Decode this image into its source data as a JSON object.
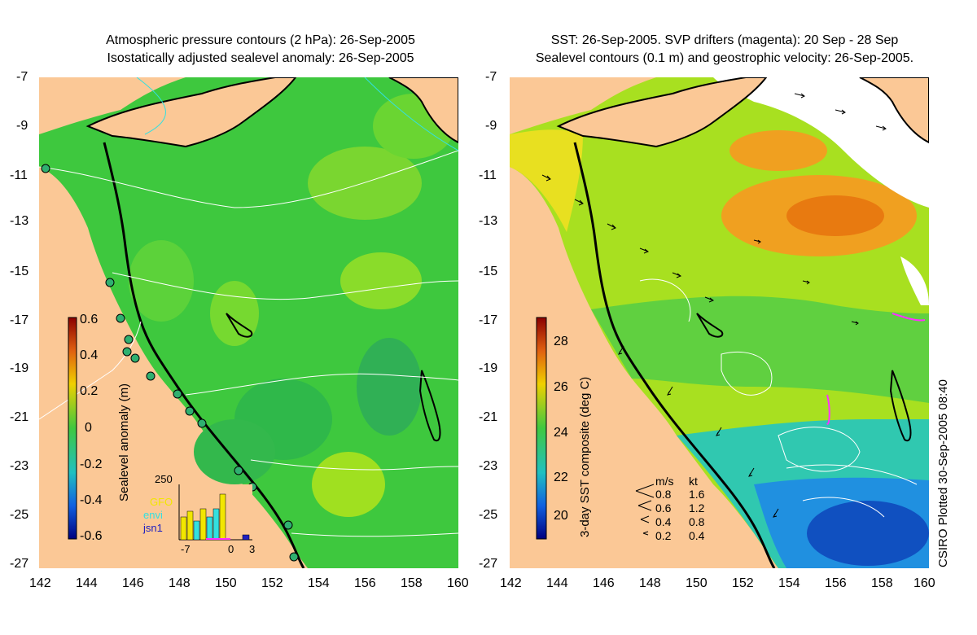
{
  "left_panel": {
    "title_line1": "Atmospheric pressure contours (2 hPa): 26-Sep-2005",
    "title_line2": "Isostatically adjusted sealevel anomaly: 26-Sep-2005",
    "colorbar_label": "Sealevel anomaly (m)",
    "colorbar_ticks": [
      "0.6",
      "0.4",
      "0.2",
      "0",
      "-0.2",
      "-0.4",
      "-0.6"
    ],
    "inset": {
      "ymax_label": "250",
      "legend": [
        {
          "name": "GFO",
          "color": "#f2e600"
        },
        {
          "name": "envi",
          "color": "#33e0e0"
        },
        {
          "name": "jsn1",
          "color": "#2020c0"
        }
      ],
      "x_ticks": [
        "-7",
        "0",
        "3"
      ]
    }
  },
  "right_panel": {
    "title_line1": "SST: 26-Sep-2005. SVP drifters (magenta): 20 Sep - 28 Sep",
    "title_line2": "Sealevel contours (0.1 m) and geostrophic velocity: 26-Sep-2005.",
    "colorbar_label": "3-day SST composite (deg C)",
    "colorbar_ticks": [
      "28",
      "26",
      "24",
      "22",
      "20"
    ],
    "velocity_legend": {
      "header_ms": "m/s",
      "header_kt": "kt",
      "rows": [
        {
          "ms": "0.8",
          "kt": "1.6"
        },
        {
          "ms": "0.6",
          "kt": "1.2"
        },
        {
          "ms": "0.4",
          "kt": "0.8"
        },
        {
          "ms": "0.2",
          "kt": "0.4"
        }
      ]
    },
    "side_note": "CSIRO Plotted 30-Sep-2005 08:40"
  },
  "axes": {
    "lat_ticks": [
      "-7",
      "-9",
      "-11",
      "-13",
      "-15",
      "-17",
      "-19",
      "-21",
      "-23",
      "-25",
      "-27"
    ],
    "lon_ticks": [
      "142",
      "144",
      "146",
      "148",
      "150",
      "152",
      "154",
      "156",
      "158",
      "160"
    ]
  },
  "colors": {
    "land": "#fbc896",
    "ocean_green": "#3ec83e",
    "contour_white": "#ffffff",
    "coast_black": "#000000"
  }
}
